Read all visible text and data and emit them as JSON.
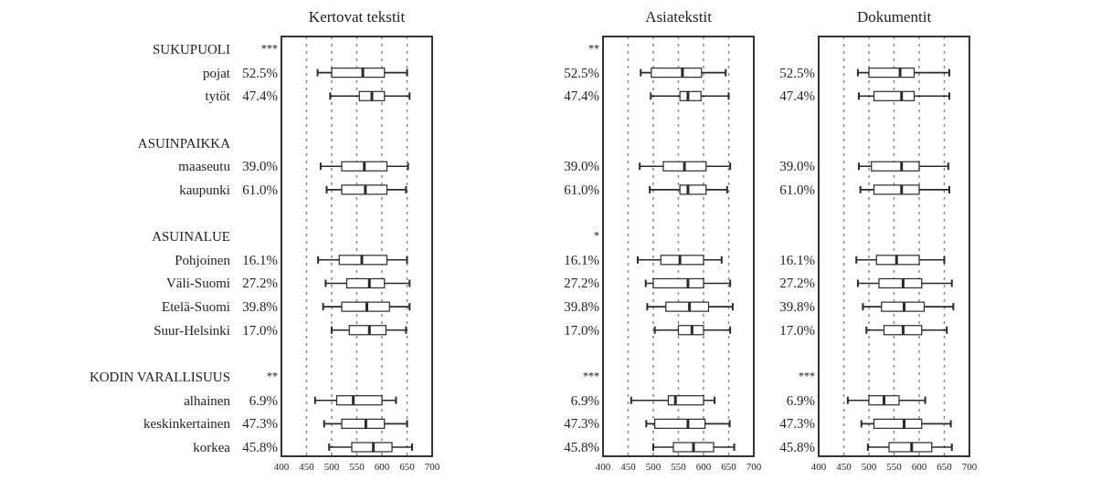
{
  "chart_data": [
    {
      "type": "box",
      "orientation": "horizontal",
      "title": "Kertovat tekstit",
      "categories": [
        "SUKUPUOLI",
        "pojat",
        "tytöt",
        null,
        "ASUINPAIKKA",
        "maaseutu",
        "kaupunki",
        null,
        "ASUINALUE",
        "Pohjoinen",
        "Väli-Suomi",
        "Etelä-Suomi",
        "Suur-Helsinki",
        null,
        "KODIN VARALLISUUS",
        "alhainen",
        "keskinkertainen",
        "korkea"
      ],
      "boxes": [
        null,
        {
          "low": 472,
          "q1": 500,
          "median": 562,
          "q3": 605,
          "high": 650
        },
        {
          "low": 497,
          "q1": 555,
          "median": 580,
          "q3": 605,
          "high": 655
        },
        null,
        null,
        {
          "low": 478,
          "q1": 520,
          "median": 565,
          "q3": 610,
          "high": 652
        },
        {
          "low": 490,
          "q1": 520,
          "median": 567,
          "q3": 610,
          "high": 648
        },
        null,
        null,
        {
          "low": 473,
          "q1": 515,
          "median": 560,
          "q3": 610,
          "high": 650
        },
        {
          "low": 488,
          "q1": 530,
          "median": 575,
          "q3": 605,
          "high": 655
        },
        {
          "low": 483,
          "q1": 520,
          "median": 570,
          "q3": 615,
          "high": 655
        },
        {
          "low": 500,
          "q1": 535,
          "median": 575,
          "q3": 608,
          "high": 648
        },
        null,
        null,
        {
          "low": 467,
          "q1": 510,
          "median": 543,
          "q3": 600,
          "high": 628
        },
        {
          "low": 485,
          "q1": 520,
          "median": 568,
          "q3": 605,
          "high": 650
        },
        {
          "low": 495,
          "q1": 540,
          "median": 583,
          "q3": 620,
          "high": 660
        }
      ],
      "xlim": [
        400,
        700
      ],
      "xticks": [
        400,
        450,
        500,
        550,
        600,
        650,
        700
      ],
      "grid": "x",
      "annotations": [
        "***",
        "52.5%",
        "47.4%",
        null,
        null,
        "39.0%",
        "61.0%",
        null,
        null,
        "16.1%",
        "27.2%",
        "39.8%",
        "17.0%",
        null,
        "**",
        "6.9%",
        "47.3%",
        "45.8%"
      ]
    },
    {
      "type": "box",
      "orientation": "horizontal",
      "title": "Asiatekstit",
      "boxes": [
        null,
        {
          "low": 475,
          "q1": 496,
          "median": 558,
          "q3": 596,
          "high": 644
        },
        {
          "low": 495,
          "q1": 553,
          "median": 569,
          "q3": 595,
          "high": 650
        },
        null,
        null,
        {
          "low": 473,
          "q1": 520,
          "median": 562,
          "q3": 605,
          "high": 653
        },
        {
          "low": 493,
          "q1": 553,
          "median": 569,
          "q3": 605,
          "high": 647
        },
        null,
        null,
        {
          "low": 469,
          "q1": 515,
          "median": 553,
          "q3": 600,
          "high": 636
        },
        {
          "low": 485,
          "q1": 500,
          "median": 569,
          "q3": 600,
          "high": 653
        },
        {
          "low": 488,
          "q1": 525,
          "median": 572,
          "q3": 610,
          "high": 658
        },
        {
          "low": 503,
          "q1": 550,
          "median": 577,
          "q3": 600,
          "high": 653
        },
        null,
        null,
        {
          "low": 456,
          "q1": 530,
          "median": 544,
          "q3": 600,
          "high": 622
        },
        {
          "low": 486,
          "q1": 503,
          "median": 569,
          "q3": 603,
          "high": 652
        },
        {
          "low": 500,
          "q1": 540,
          "median": 580,
          "q3": 620,
          "high": 661
        }
      ],
      "xlim": [
        400,
        700
      ],
      "xticks": [
        400,
        450,
        500,
        550,
        600,
        650,
        700
      ],
      "grid": "x",
      "tick_labels": "x",
      "annotations": [
        "**",
        "52.5%",
        "47.4%",
        null,
        null,
        "39.0%",
        "61.0%",
        null,
        "*",
        "16.1%",
        "27.2%",
        "39.8%",
        "17.0%",
        null,
        "***",
        "6.9%",
        "47.3%",
        "45.8%"
      ]
    },
    {
      "type": "box",
      "orientation": "horizontal",
      "title": "Dokumentit",
      "boxes": [
        null,
        {
          "low": 478,
          "q1": 500,
          "median": 562,
          "q3": 590,
          "high": 660
        },
        {
          "low": 480,
          "q1": 510,
          "median": 565,
          "q3": 590,
          "high": 660
        },
        null,
        null,
        {
          "low": 480,
          "q1": 505,
          "median": 565,
          "q3": 600,
          "high": 658
        },
        {
          "low": 483,
          "q1": 510,
          "median": 565,
          "q3": 600,
          "high": 660
        },
        null,
        null,
        {
          "low": 475,
          "q1": 515,
          "median": 555,
          "q3": 600,
          "high": 650
        },
        {
          "low": 478,
          "q1": 520,
          "median": 568,
          "q3": 605,
          "high": 665
        },
        {
          "low": 488,
          "q1": 525,
          "median": 570,
          "q3": 610,
          "high": 668
        },
        {
          "low": 495,
          "q1": 530,
          "median": 568,
          "q3": 605,
          "high": 655
        },
        null,
        null,
        {
          "low": 458,
          "q1": 500,
          "median": 530,
          "q3": 560,
          "high": 612
        },
        {
          "low": 485,
          "q1": 510,
          "median": 570,
          "q3": 605,
          "high": 663
        },
        {
          "low": 498,
          "q1": 540,
          "median": 585,
          "q3": 625,
          "high": 665
        }
      ],
      "xlim": [
        400,
        700
      ],
      "xticks": [
        400,
        450,
        500,
        550,
        600,
        650,
        700
      ],
      "grid": "x",
      "tick_labels": "x",
      "annotations": [
        null,
        "52.5%",
        "47.4%",
        null,
        null,
        "39.0%",
        "61.0%",
        null,
        null,
        "16.1%",
        "27.2%",
        "39.8%",
        "17.0%",
        null,
        "***",
        "6.9%",
        "47.3%",
        "45.8%"
      ]
    }
  ]
}
